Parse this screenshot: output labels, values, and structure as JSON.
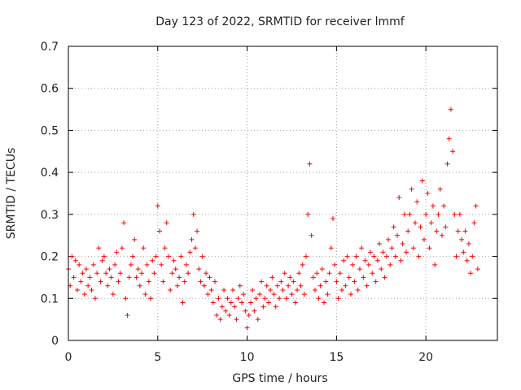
{
  "chart_data": {
    "type": "scatter",
    "title": "Day 123 of 2022, SRMTID for receiver lmmf",
    "xlabel": "GPS time / hours",
    "ylabel": "SRMTID / TECUs",
    "xlim": [
      0,
      24
    ],
    "ylim": [
      0,
      0.7
    ],
    "xticks": [
      0,
      5,
      10,
      15,
      20
    ],
    "xtick_labels": [
      "0",
      "5",
      "10",
      "15",
      "20"
    ],
    "yticks": [
      0,
      0.1,
      0.2,
      0.3,
      0.4,
      0.5,
      0.6,
      0.7
    ],
    "ytick_labels": [
      "0",
      "0.1",
      "0.2",
      "0.3",
      "0.4",
      "0.5",
      "0.6",
      "0.7"
    ],
    "grid": true,
    "marker": "+",
    "color": "#ff0000",
    "series": [
      {
        "name": "SRMTID",
        "points": [
          [
            0.0,
            0.17
          ],
          [
            0.1,
            0.13
          ],
          [
            0.2,
            0.2
          ],
          [
            0.3,
            0.15
          ],
          [
            0.4,
            0.19
          ],
          [
            0.5,
            0.12
          ],
          [
            0.6,
            0.18
          ],
          [
            0.7,
            0.14
          ],
          [
            0.8,
            0.16
          ],
          [
            0.9,
            0.11
          ],
          [
            1.0,
            0.17
          ],
          [
            1.1,
            0.13
          ],
          [
            1.2,
            0.15
          ],
          [
            1.3,
            0.12
          ],
          [
            1.4,
            0.18
          ],
          [
            1.5,
            0.1
          ],
          [
            1.6,
            0.16
          ],
          [
            1.7,
            0.22
          ],
          [
            1.8,
            0.14
          ],
          [
            1.9,
            0.19
          ],
          [
            2.0,
            0.2
          ],
          [
            2.1,
            0.16
          ],
          [
            2.2,
            0.13
          ],
          [
            2.3,
            0.17
          ],
          [
            2.4,
            0.15
          ],
          [
            2.5,
            0.11
          ],
          [
            2.6,
            0.18
          ],
          [
            2.7,
            0.21
          ],
          [
            2.8,
            0.14
          ],
          [
            2.9,
            0.16
          ],
          [
            3.0,
            0.22
          ],
          [
            3.1,
            0.28
          ],
          [
            3.2,
            0.1
          ],
          [
            3.3,
            0.06
          ],
          [
            3.4,
            0.15
          ],
          [
            3.5,
            0.18
          ],
          [
            3.6,
            0.2
          ],
          [
            3.7,
            0.24
          ],
          [
            3.8,
            0.15
          ],
          [
            3.9,
            0.17
          ],
          [
            4.0,
            0.13
          ],
          [
            4.1,
            0.16
          ],
          [
            4.2,
            0.22
          ],
          [
            4.3,
            0.11
          ],
          [
            4.4,
            0.18
          ],
          [
            4.5,
            0.14
          ],
          [
            4.6,
            0.1
          ],
          [
            4.7,
            0.19
          ],
          [
            4.8,
            0.16
          ],
          [
            4.9,
            0.2
          ],
          [
            5.0,
            0.32
          ],
          [
            5.1,
            0.26
          ],
          [
            5.2,
            0.18
          ],
          [
            5.3,
            0.14
          ],
          [
            5.4,
            0.22
          ],
          [
            5.5,
            0.28
          ],
          [
            5.6,
            0.2
          ],
          [
            5.7,
            0.12
          ],
          [
            5.8,
            0.16
          ],
          [
            5.9,
            0.19
          ],
          [
            6.0,
            0.17
          ],
          [
            6.1,
            0.13
          ],
          [
            6.2,
            0.15
          ],
          [
            6.3,
            0.2
          ],
          [
            6.4,
            0.09
          ],
          [
            6.5,
            0.14
          ],
          [
            6.6,
            0.18
          ],
          [
            6.7,
            0.16
          ],
          [
            6.8,
            0.21
          ],
          [
            6.9,
            0.24
          ],
          [
            7.0,
            0.3
          ],
          [
            7.1,
            0.22
          ],
          [
            7.2,
            0.26
          ],
          [
            7.3,
            0.17
          ],
          [
            7.4,
            0.14
          ],
          [
            7.5,
            0.2
          ],
          [
            7.6,
            0.13
          ],
          [
            7.7,
            0.16
          ],
          [
            7.8,
            0.11
          ],
          [
            7.9,
            0.15
          ],
          [
            8.0,
            0.12
          ],
          [
            8.1,
            0.09
          ],
          [
            8.2,
            0.14
          ],
          [
            8.3,
            0.06
          ],
          [
            8.4,
            0.1
          ],
          [
            8.5,
            0.05
          ],
          [
            8.6,
            0.08
          ],
          [
            8.7,
            0.12
          ],
          [
            8.8,
            0.07
          ],
          [
            8.9,
            0.1
          ],
          [
            9.0,
            0.06
          ],
          [
            9.1,
            0.09
          ],
          [
            9.2,
            0.12
          ],
          [
            9.3,
            0.08
          ],
          [
            9.4,
            0.05
          ],
          [
            9.5,
            0.1
          ],
          [
            9.6,
            0.13
          ],
          [
            9.7,
            0.09
          ],
          [
            9.8,
            0.11
          ],
          [
            9.9,
            0.07
          ],
          [
            10.0,
            0.03
          ],
          [
            10.1,
            0.06
          ],
          [
            10.2,
            0.09
          ],
          [
            10.3,
            0.12
          ],
          [
            10.4,
            0.07
          ],
          [
            10.5,
            0.1
          ],
          [
            10.6,
            0.05
          ],
          [
            10.7,
            0.11
          ],
          [
            10.8,
            0.14
          ],
          [
            10.9,
            0.08
          ],
          [
            11.0,
            0.1
          ],
          [
            11.1,
            0.13
          ],
          [
            11.2,
            0.09
          ],
          [
            11.3,
            0.12
          ],
          [
            11.4,
            0.15
          ],
          [
            11.5,
            0.11
          ],
          [
            11.6,
            0.08
          ],
          [
            11.7,
            0.13
          ],
          [
            11.8,
            0.1
          ],
          [
            11.9,
            0.14
          ],
          [
            12.0,
            0.12
          ],
          [
            12.1,
            0.16
          ],
          [
            12.2,
            0.1
          ],
          [
            12.3,
            0.13
          ],
          [
            12.4,
            0.15
          ],
          [
            12.5,
            0.11
          ],
          [
            12.6,
            0.14
          ],
          [
            12.7,
            0.09
          ],
          [
            12.8,
            0.12
          ],
          [
            12.9,
            0.16
          ],
          [
            13.0,
            0.13
          ],
          [
            13.1,
            0.18
          ],
          [
            13.2,
            0.11
          ],
          [
            13.3,
            0.2
          ],
          [
            13.4,
            0.3
          ],
          [
            13.5,
            0.42
          ],
          [
            13.6,
            0.25
          ],
          [
            13.7,
            0.15
          ],
          [
            13.8,
            0.12
          ],
          [
            13.9,
            0.16
          ],
          [
            14.0,
            0.1
          ],
          [
            14.1,
            0.13
          ],
          [
            14.2,
            0.17
          ],
          [
            14.3,
            0.09
          ],
          [
            14.4,
            0.14
          ],
          [
            14.5,
            0.11
          ],
          [
            14.6,
            0.16
          ],
          [
            14.7,
            0.22
          ],
          [
            14.8,
            0.29
          ],
          [
            14.9,
            0.18
          ],
          [
            15.0,
            0.14
          ],
          [
            15.1,
            0.1
          ],
          [
            15.2,
            0.16
          ],
          [
            15.3,
            0.12
          ],
          [
            15.4,
            0.19
          ],
          [
            15.5,
            0.13
          ],
          [
            15.6,
            0.2
          ],
          [
            15.7,
            0.15
          ],
          [
            15.8,
            0.11
          ],
          [
            15.9,
            0.18
          ],
          [
            16.0,
            0.14
          ],
          [
            16.1,
            0.2
          ],
          [
            16.2,
            0.12
          ],
          [
            16.3,
            0.17
          ],
          [
            16.4,
            0.22
          ],
          [
            16.5,
            0.15
          ],
          [
            16.6,
            0.19
          ],
          [
            16.7,
            0.13
          ],
          [
            16.8,
            0.18
          ],
          [
            16.9,
            0.21
          ],
          [
            17.0,
            0.16
          ],
          [
            17.1,
            0.2
          ],
          [
            17.2,
            0.14
          ],
          [
            17.3,
            0.19
          ],
          [
            17.4,
            0.23
          ],
          [
            17.5,
            0.17
          ],
          [
            17.6,
            0.21
          ],
          [
            17.7,
            0.15
          ],
          [
            17.8,
            0.2
          ],
          [
            17.9,
            0.24
          ],
          [
            18.0,
            0.18
          ],
          [
            18.1,
            0.22
          ],
          [
            18.2,
            0.27
          ],
          [
            18.3,
            0.2
          ],
          [
            18.4,
            0.25
          ],
          [
            18.5,
            0.34
          ],
          [
            18.6,
            0.19
          ],
          [
            18.7,
            0.23
          ],
          [
            18.8,
            0.3
          ],
          [
            18.9,
            0.21
          ],
          [
            19.0,
            0.26
          ],
          [
            19.1,
            0.3
          ],
          [
            19.2,
            0.36
          ],
          [
            19.3,
            0.22
          ],
          [
            19.4,
            0.28
          ],
          [
            19.5,
            0.33
          ],
          [
            19.6,
            0.2
          ],
          [
            19.7,
            0.27
          ],
          [
            19.8,
            0.38
          ],
          [
            19.9,
            0.24
          ],
          [
            20.0,
            0.3
          ],
          [
            20.1,
            0.35
          ],
          [
            20.2,
            0.22
          ],
          [
            20.3,
            0.28
          ],
          [
            20.4,
            0.32
          ],
          [
            20.5,
            0.18
          ],
          [
            20.6,
            0.26
          ],
          [
            20.7,
            0.3
          ],
          [
            20.8,
            0.36
          ],
          [
            20.9,
            0.25
          ],
          [
            21.0,
            0.32
          ],
          [
            21.1,
            0.27
          ],
          [
            21.2,
            0.42
          ],
          [
            21.3,
            0.48
          ],
          [
            21.4,
            0.55
          ],
          [
            21.5,
            0.45
          ],
          [
            21.6,
            0.3
          ],
          [
            21.7,
            0.2
          ],
          [
            21.8,
            0.26
          ],
          [
            21.9,
            0.3
          ],
          [
            22.0,
            0.24
          ],
          [
            22.1,
            0.21
          ],
          [
            22.2,
            0.26
          ],
          [
            22.3,
            0.19
          ],
          [
            22.4,
            0.23
          ],
          [
            22.5,
            0.16
          ],
          [
            22.6,
            0.2
          ],
          [
            22.7,
            0.28
          ],
          [
            22.8,
            0.32
          ],
          [
            22.9,
            0.17
          ]
        ]
      }
    ]
  }
}
